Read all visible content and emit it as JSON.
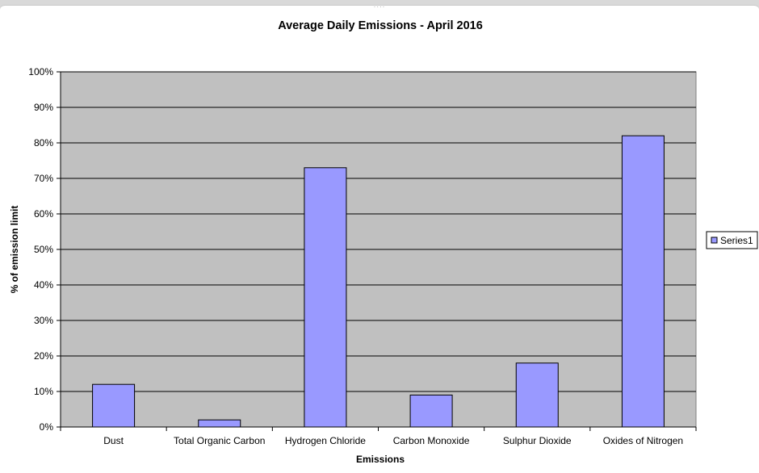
{
  "chart_data": {
    "type": "bar",
    "title": "Average Daily Emissions - April 2016",
    "xlabel": "Emissions",
    "ylabel": "% of emission limit",
    "categories": [
      "Dust",
      "Total Organic Carbon",
      "Hydrogen Chloride",
      "Carbon Monoxide",
      "Sulphur Dioxide",
      "Oxides of Nitrogen"
    ],
    "series": [
      {
        "name": "Series1",
        "values": [
          0.12,
          0.02,
          0.73,
          0.09,
          0.18,
          0.82
        ]
      }
    ],
    "ylim": [
      0,
      1
    ],
    "yticks": [
      "0%",
      "10%",
      "20%",
      "30%",
      "40%",
      "50%",
      "60%",
      "70%",
      "80%",
      "90%",
      "100%"
    ],
    "grid": true,
    "legend_position": "right",
    "colors": {
      "plot_background": "#c0c0c0",
      "bar_fill": "#9999ff",
      "bar_stroke": "#000000",
      "gridline": "#000000"
    }
  }
}
